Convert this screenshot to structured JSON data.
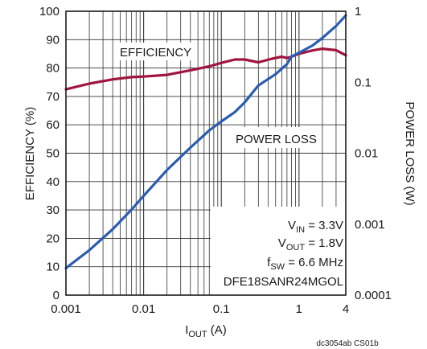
{
  "chart_data": {
    "type": "line",
    "xscale": "log",
    "xlim": [
      0.001,
      4
    ],
    "ylim": [
      0,
      100
    ],
    "y2lim": [
      0.0001,
      1
    ],
    "y2scale": "log",
    "x_ticks": [
      "0.001",
      "0.01",
      "0.1",
      "1",
      "4"
    ],
    "y_ticks": [
      "0",
      "10",
      "20",
      "30",
      "40",
      "50",
      "60",
      "70",
      "80",
      "90",
      "100"
    ],
    "y2_ticks": [
      "0.0001",
      "0.001",
      "0.01",
      "0.1",
      "1"
    ],
    "xlabel_main": "I",
    "xlabel_sub": "OUT",
    "xlabel_unit": " (A)",
    "ylabel": "EFFICIENCY (%)",
    "y2label": "POWER LOSS (W)",
    "series": [
      {
        "name": "EFFICIENCY",
        "axis": "left",
        "color": "#a0153e",
        "x": [
          0.001,
          0.002,
          0.004,
          0.007,
          0.01,
          0.02,
          0.04,
          0.07,
          0.1,
          0.15,
          0.2,
          0.3,
          0.45,
          0.6,
          0.7,
          0.8,
          1.0,
          1.5,
          2.0,
          3.0,
          4.0
        ],
        "y": [
          72.5,
          74.5,
          76.0,
          76.8,
          77.0,
          77.6,
          79.2,
          80.6,
          81.8,
          83.0,
          83.0,
          82.0,
          83.3,
          84.0,
          83.5,
          84.0,
          85.0,
          86.2,
          86.8,
          86.3,
          84.5
        ]
      },
      {
        "name": "POWER LOSS",
        "axis": "right",
        "color": "#2a5db0",
        "x": [
          0.001,
          0.002,
          0.004,
          0.007,
          0.01,
          0.02,
          0.04,
          0.07,
          0.1,
          0.15,
          0.2,
          0.3,
          0.5,
          0.7,
          0.8,
          1.0,
          1.5,
          2.0,
          3.0,
          4.0
        ],
        "y": [
          0.00024,
          0.00043,
          0.00085,
          0.0016,
          0.0025,
          0.0058,
          0.012,
          0.021,
          0.028,
          0.038,
          0.052,
          0.09,
          0.13,
          0.18,
          0.23,
          0.26,
          0.33,
          0.42,
          0.62,
          0.87
        ]
      }
    ],
    "annotations": {
      "efficiency_label": "EFFICIENCY",
      "power_loss_label": "POWER LOSS",
      "vin_main": "V",
      "vin_sub": "IN",
      "vin_value": " = 3.3V",
      "vout_main": "V",
      "vout_sub": "OUT",
      "vout_value": " = 1.8V",
      "fsw_main": "f",
      "fsw_sub": "SW",
      "fsw_value": " = 6.6 MHz",
      "part": "DFE18SANR24MGOL"
    },
    "figure_id": "dc3054ab CS01b",
    "grid": true
  }
}
